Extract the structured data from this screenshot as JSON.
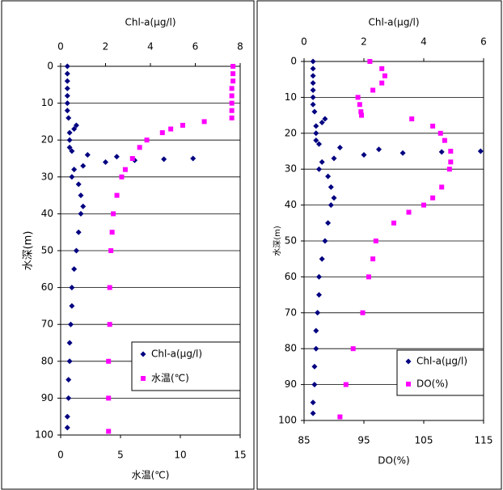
{
  "chart_data": [
    {
      "type": "scatter",
      "x2_label": "Chl-a(μg/l)",
      "x_label": "水温(℃)",
      "y_label": "水深(m)",
      "ylim": [
        0,
        100
      ],
      "y_inverted": true,
      "yticks": [
        0,
        10,
        20,
        30,
        40,
        50,
        60,
        70,
        80,
        90,
        100
      ],
      "xlim": [
        0,
        15
      ],
      "xticks": [
        0,
        5,
        10,
        15
      ],
      "x2lim": [
        0,
        8
      ],
      "x2ticks": [
        0,
        2,
        4,
        6,
        8
      ],
      "grid": true,
      "legend_position": "lower right",
      "series": [
        {
          "name": "Chl-a(μg/l)",
          "color": "#000080",
          "marker": "diamond",
          "axis": "x2",
          "y": [
            0,
            2,
            4,
            6,
            8,
            10,
            12,
            14,
            16,
            17,
            18,
            20,
            22,
            23,
            24,
            24.5,
            25,
            25.2,
            25.5,
            26,
            27,
            28,
            30,
            32,
            35,
            38,
            40,
            45,
            50,
            55,
            60,
            65,
            70,
            75,
            80,
            85,
            90,
            95,
            98
          ],
          "x": [
            0.3,
            0.3,
            0.3,
            0.3,
            0.3,
            0.3,
            0.3,
            0.35,
            0.7,
            0.6,
            0.4,
            0.4,
            0.4,
            0.5,
            1.2,
            2.5,
            5.9,
            4.6,
            3.3,
            2.0,
            1.0,
            0.6,
            0.5,
            0.8,
            0.9,
            1.0,
            0.9,
            0.8,
            0.7,
            0.6,
            0.5,
            0.5,
            0.45,
            0.4,
            0.4,
            0.35,
            0.35,
            0.3,
            0.3
          ]
        },
        {
          "name": "水温(℃)",
          "color": "#ff00ff",
          "marker": "square",
          "axis": "x",
          "y": [
            0,
            2,
            4,
            6,
            8,
            10,
            12,
            14,
            15,
            16,
            17,
            18,
            20,
            22,
            25,
            28,
            30,
            35,
            40,
            45,
            50,
            60,
            70,
            80,
            90,
            99
          ],
          "x": [
            14.4,
            14.4,
            14.4,
            14.3,
            14.3,
            14.3,
            14.3,
            14.3,
            12,
            10.2,
            9.2,
            8.5,
            7.2,
            6.6,
            6.0,
            5.4,
            5.1,
            4.7,
            4.4,
            4.3,
            4.2,
            4.1,
            4.1,
            4.0,
            4.0,
            4.0
          ]
        }
      ]
    },
    {
      "type": "scatter",
      "x2_label": "Chl-a(μg/l)",
      "x_label": "DO(%)",
      "y_label": "水深(m)",
      "ylim": [
        0,
        100
      ],
      "y_inverted": true,
      "yticks": [
        0,
        10,
        20,
        30,
        40,
        50,
        60,
        70,
        80,
        90,
        100
      ],
      "xlim": [
        85,
        115
      ],
      "xticks": [
        85,
        95,
        105,
        115
      ],
      "x2lim": [
        0,
        6
      ],
      "x2ticks": [
        0,
        2,
        4,
        6
      ],
      "grid": true,
      "legend_position": "lower right",
      "series": [
        {
          "name": "Chl-a(μg/l)",
          "color": "#000080",
          "marker": "diamond",
          "axis": "x2",
          "y": [
            0,
            2,
            4,
            6,
            8,
            10,
            12,
            14,
            16,
            17,
            18,
            20,
            22,
            23,
            24,
            24.5,
            25,
            25.2,
            25.5,
            26,
            27,
            28,
            30,
            32,
            35,
            38,
            40,
            45,
            50,
            55,
            60,
            65,
            70,
            75,
            80,
            85,
            90,
            95,
            98
          ],
          "x": [
            0.3,
            0.3,
            0.3,
            0.3,
            0.3,
            0.3,
            0.3,
            0.35,
            0.7,
            0.6,
            0.4,
            0.4,
            0.4,
            0.5,
            1.2,
            2.5,
            5.9,
            4.6,
            3.3,
            2.0,
            1.0,
            0.6,
            0.5,
            0.8,
            0.9,
            1.0,
            0.9,
            0.8,
            0.7,
            0.6,
            0.5,
            0.5,
            0.45,
            0.4,
            0.4,
            0.35,
            0.35,
            0.3,
            0.3
          ]
        },
        {
          "name": "DO(%)",
          "color": "#ff00ff",
          "marker": "square",
          "axis": "x",
          "y": [
            0,
            2,
            4,
            6,
            8,
            10,
            12,
            14,
            15,
            16,
            18,
            20,
            22,
            25,
            28,
            30,
            35,
            38,
            40,
            42,
            45,
            50,
            55,
            60,
            70,
            80,
            90,
            99
          ],
          "x": [
            96,
            98,
            98.5,
            98,
            96.5,
            94,
            94.3,
            94.5,
            94.6,
            103,
            106.5,
            107.8,
            108.5,
            109.5,
            109.5,
            109.3,
            108,
            106.5,
            105,
            102.5,
            100,
            97,
            96.5,
            95.8,
            94.8,
            93.2,
            92,
            91
          ]
        }
      ]
    }
  ]
}
